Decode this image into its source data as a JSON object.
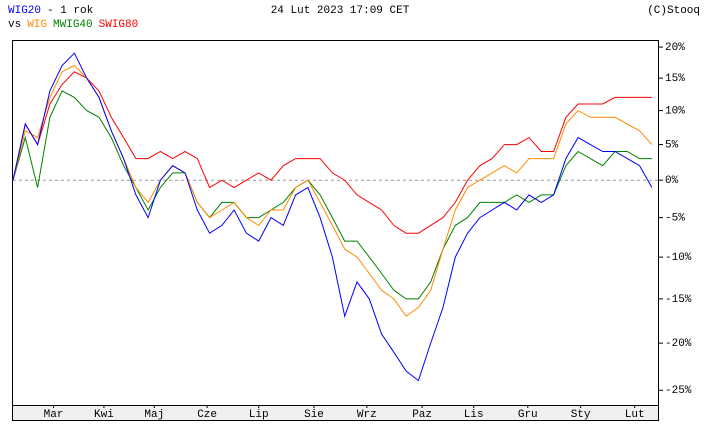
{
  "chart_data": {
    "type": "line",
    "title": "- 1 rok",
    "subtitle": "vs",
    "date": "24 Lut 2023 17:09 CET",
    "source": "(C)Stooq",
    "log_scale": true,
    "x": [
      0,
      1,
      2,
      3,
      4,
      5,
      6,
      7,
      8,
      9,
      10,
      11,
      12,
      13,
      14,
      15,
      16,
      17,
      18,
      19,
      20,
      21,
      22,
      23,
      24,
      25,
      26,
      27,
      28,
      29,
      30,
      31,
      32,
      33,
      34,
      35,
      36,
      37,
      38,
      39,
      40,
      41,
      42,
      43,
      44,
      45,
      46,
      47,
      48,
      49,
      50,
      51,
      52
    ],
    "xlim": [
      0,
      52.5
    ],
    "xticks": [
      {
        "value": 3.3,
        "label": "Mar"
      },
      {
        "value": 7.4,
        "label": "Kwi"
      },
      {
        "value": 11.5,
        "label": "Maj"
      },
      {
        "value": 15.8,
        "label": "Cze"
      },
      {
        "value": 20,
        "label": "Lip"
      },
      {
        "value": 24.5,
        "label": "Sie"
      },
      {
        "value": 28.8,
        "label": "Wrz"
      },
      {
        "value": 33.3,
        "label": "Paz"
      },
      {
        "value": 37.5,
        "label": "Lis"
      },
      {
        "value": 41.9,
        "label": "Gru"
      },
      {
        "value": 46.2,
        "label": "Sty"
      },
      {
        "value": 50.6,
        "label": "Lut"
      }
    ],
    "ylim": [
      -26.5,
      21
    ],
    "yticks": [
      {
        "value": 20,
        "label": "20%"
      },
      {
        "value": 15,
        "label": "15%"
      },
      {
        "value": 10,
        "label": "10%"
      },
      {
        "value": 5,
        "label": "5%"
      },
      {
        "value": 0,
        "label": "0%"
      },
      {
        "value": -5,
        "label": "-5%"
      },
      {
        "value": -10,
        "label": "-10%"
      },
      {
        "value": -15,
        "label": "-15%"
      },
      {
        "value": -20,
        "label": "-20%"
      },
      {
        "value": -25,
        "label": "-25%"
      }
    ],
    "zero_line": true,
    "series": [
      {
        "name": "WIG20",
        "color": "#0000ff",
        "values": [
          0,
          8,
          5,
          13,
          17,
          19,
          15,
          12,
          7,
          3,
          -2,
          -5,
          0,
          2,
          1,
          -4,
          -7,
          -6,
          -4,
          -7,
          -8,
          -5,
          -6,
          -2,
          -1,
          -5,
          -10,
          -17,
          -13,
          -15,
          -19,
          -21,
          -23,
          -24,
          -20,
          -16,
          -10,
          -7,
          -5,
          -4,
          -3,
          -4,
          -2,
          -3,
          -2,
          3,
          6,
          5,
          4,
          4,
          3,
          2,
          -1
        ]
      },
      {
        "name": "WIG",
        "color": "#ff8c00",
        "values": [
          0,
          7,
          6,
          12,
          16,
          17,
          15,
          12,
          7,
          3,
          -1,
          -3,
          0,
          2,
          1,
          -3,
          -5,
          -4,
          -3,
          -5,
          -6,
          -4,
          -4,
          -1,
          0,
          -3,
          -6,
          -9,
          -10,
          -12,
          -14,
          -15,
          -17,
          -16,
          -14,
          -9,
          -4,
          -1,
          0,
          1,
          2,
          1,
          3,
          3,
          3,
          8,
          10,
          9,
          9,
          9,
          8,
          7,
          5
        ]
      },
      {
        "name": "MWIG40",
        "color": "#008000",
        "values": [
          0,
          6,
          -1,
          9,
          13,
          12,
          10,
          9,
          6,
          2,
          -1,
          -4,
          -1,
          1,
          1,
          -3,
          -5,
          -3,
          -3,
          -5,
          -5,
          -4,
          -3,
          -1,
          0,
          -2,
          -5,
          -8,
          -8,
          -10,
          -12,
          -14,
          -15,
          -15,
          -13,
          -9,
          -6,
          -5,
          -3,
          -3,
          -3,
          -2,
          -3,
          -2,
          -2,
          2,
          4,
          3,
          2,
          4,
          4,
          3,
          3
        ]
      },
      {
        "name": "SWIG80",
        "color": "#ff0000",
        "values": [
          0,
          8,
          5,
          11,
          14,
          16,
          15,
          13,
          9,
          6,
          3,
          3,
          4,
          3,
          4,
          3,
          -1,
          0,
          -1,
          0,
          1,
          0,
          2,
          3,
          3,
          3,
          1,
          0,
          -2,
          -3,
          -4,
          -6,
          -7,
          -7,
          -6,
          -5,
          -3,
          0,
          2,
          3,
          5,
          5,
          6,
          4,
          4,
          9,
          11,
          11,
          11,
          12,
          12,
          12,
          12
        ]
      }
    ]
  }
}
